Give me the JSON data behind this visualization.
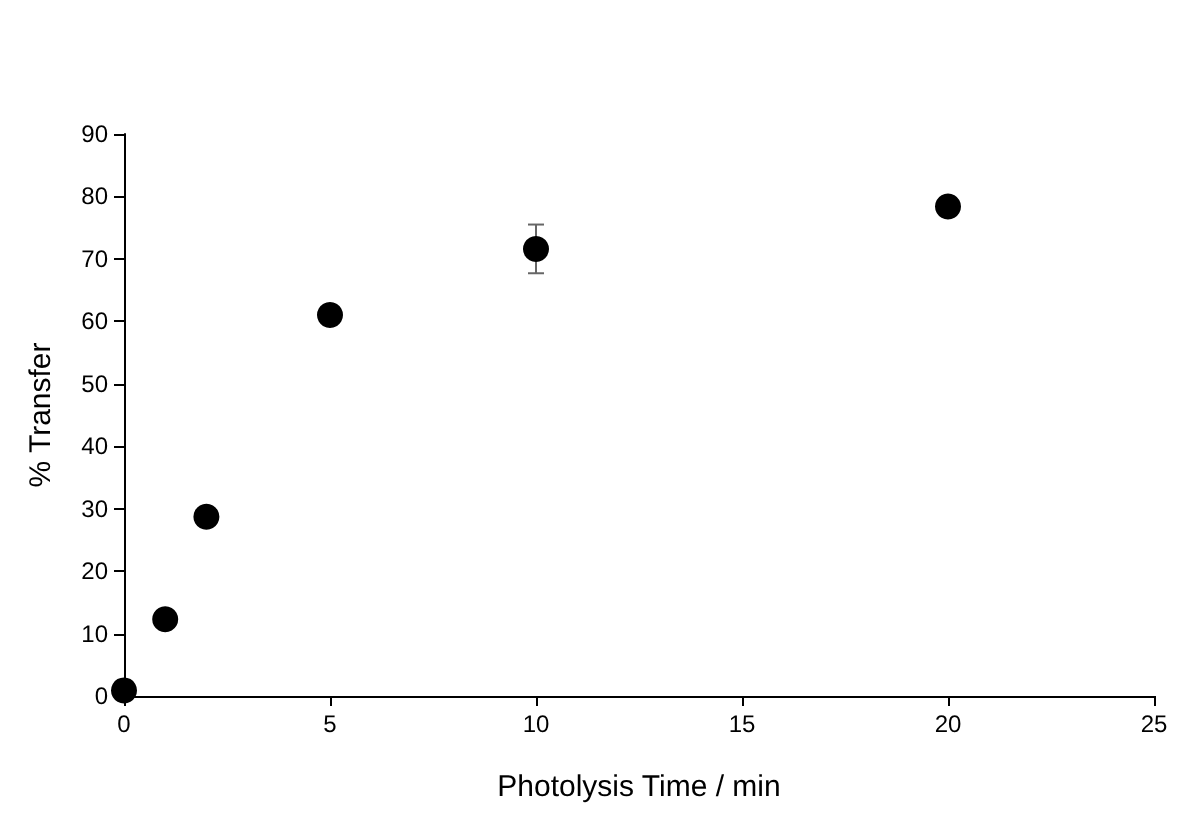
{
  "chart_data": {
    "type": "scatter",
    "xlabel": "Photolysis Time / min",
    "ylabel": "% Transfer",
    "x": [
      0,
      1,
      2,
      5,
      10,
      20
    ],
    "values": [
      0.9,
      12.3,
      28.7,
      61.0,
      71.6,
      78.4
    ],
    "errors": [
      null,
      null,
      null,
      1.5,
      3.9,
      null
    ],
    "color": "#000000",
    "marker": "circle",
    "xlim": [
      0,
      25
    ],
    "xticks": [
      0,
      5,
      10,
      15,
      20,
      25
    ],
    "ylim": [
      0,
      90
    ],
    "yticks": [
      0,
      10,
      20,
      30,
      40,
      50,
      60,
      70,
      80,
      90
    ],
    "grid": false
  }
}
